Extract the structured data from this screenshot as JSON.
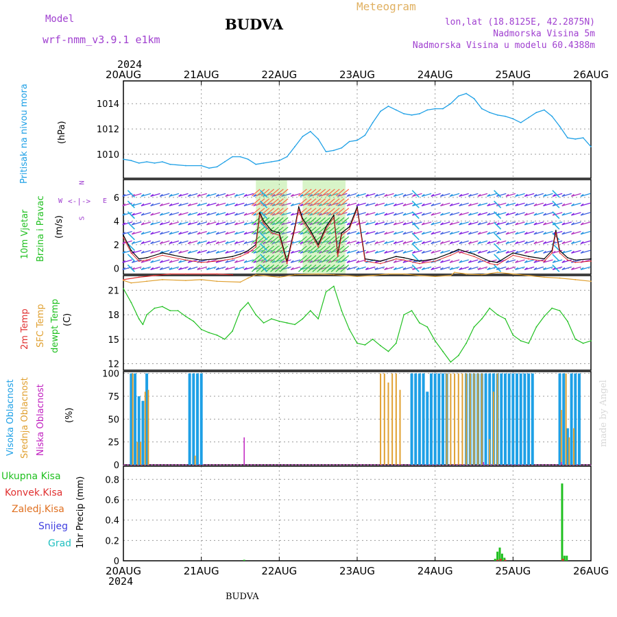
{
  "header": {
    "model_label": "Model",
    "model_name": "wrf-nmm_v3.9.1 e1km",
    "city": "BUDVA",
    "meteogram": "Meteogram",
    "lonlat": "lon,lat (18.8125E, 42.2875N)",
    "altitude": "Nadmorska Visina 5m",
    "model_altitude": "Nadmorska Visina u modelu 60.4388m",
    "year_top": "2024",
    "year_bottom": "2024",
    "footer_city": "BUDVA",
    "credit": "made by Angel"
  },
  "colors": {
    "pressure": "#1ea0e6",
    "wind_title": "#20c020",
    "temp2m": "#e03030",
    "sfc": "#e0a030",
    "dewpoint": "#20c020",
    "high_cloud": "#1ea0e6",
    "mid_cloud": "#e0a030",
    "low_cloud": "#c020c0",
    "precip_total": "#20c020",
    "precip_conv": "#e03030",
    "precip_strat": "#e07020",
    "snow": "#4040e0",
    "hail": "#20c0c0",
    "purple": "#a040d0"
  },
  "chart_data": [
    {
      "type": "line",
      "name": "pressure",
      "title_lines": [
        "Pritisak na nivou mora",
        "(hPa)"
      ],
      "x_unit": "days since 20AUG 00z",
      "xlim": [
        0,
        6
      ],
      "ylim": [
        1008.1,
        1015.8
      ],
      "y_ticks": [
        1010,
        1012,
        1014
      ],
      "x": [
        0,
        0.1,
        0.2,
        0.3,
        0.4,
        0.5,
        0.6,
        0.8,
        1.0,
        1.1,
        1.2,
        1.3,
        1.4,
        1.5,
        1.6,
        1.7,
        1.8,
        1.9,
        2.0,
        2.1,
        2.2,
        2.3,
        2.4,
        2.5,
        2.6,
        2.7,
        2.8,
        2.9,
        3.0,
        3.1,
        3.2,
        3.3,
        3.4,
        3.5,
        3.6,
        3.7,
        3.8,
        3.9,
        4.0,
        4.1,
        4.2,
        4.3,
        4.4,
        4.5,
        4.6,
        4.7,
        4.8,
        4.9,
        5.0,
        5.1,
        5.2,
        5.3,
        5.4,
        5.5,
        5.6,
        5.7,
        5.8,
        5.9,
        6.0
      ],
      "values": [
        1009.6,
        1009.5,
        1009.3,
        1009.4,
        1009.3,
        1009.4,
        1009.2,
        1009.1,
        1009.1,
        1008.9,
        1009.0,
        1009.4,
        1009.8,
        1009.8,
        1009.6,
        1009.2,
        1009.3,
        1009.4,
        1009.5,
        1009.8,
        1010.6,
        1011.4,
        1011.8,
        1011.2,
        1010.2,
        1010.3,
        1010.5,
        1011.0,
        1011.1,
        1011.5,
        1012.5,
        1013.4,
        1013.8,
        1013.5,
        1013.2,
        1013.1,
        1013.2,
        1013.5,
        1013.6,
        1013.6,
        1014.0,
        1014.6,
        1014.8,
        1014.4,
        1013.6,
        1013.3,
        1013.1,
        1013.0,
        1012.8,
        1012.5,
        1012.9,
        1013.3,
        1013.5,
        1013.0,
        1012.2,
        1011.3,
        1011.2,
        1011.3,
        1010.6
      ]
    },
    {
      "type": "line",
      "name": "wind",
      "title_lines": [
        "10m Vjetar",
        "Brzina i Pravac",
        "(m/s)"
      ],
      "compass": [
        "N",
        "S",
        "E",
        "W"
      ],
      "xlim": [
        0,
        6
      ],
      "ylim": [
        -0.5,
        7.5
      ],
      "y_ticks": [
        0,
        2,
        4,
        6
      ],
      "x": [
        0,
        0.1,
        0.2,
        0.3,
        0.5,
        0.8,
        1.0,
        1.2,
        1.4,
        1.5,
        1.6,
        1.7,
        1.75,
        1.8,
        1.9,
        2.0,
        2.1,
        2.2,
        2.25,
        2.3,
        2.4,
        2.5,
        2.6,
        2.7,
        2.75,
        2.8,
        2.9,
        3.0,
        3.1,
        3.3,
        3.5,
        3.6,
        3.8,
        4.0,
        4.2,
        4.3,
        4.5,
        4.7,
        4.8,
        5.0,
        5.2,
        5.4,
        5.5,
        5.55,
        5.6,
        5.7,
        5.8,
        6.0
      ],
      "values": [
        2.8,
        1.5,
        0.8,
        0.9,
        1.3,
        0.9,
        0.7,
        0.8,
        1.0,
        1.2,
        1.5,
        2.0,
        4.7,
        4.0,
        3.2,
        3.0,
        0.6,
        3.5,
        5.2,
        4.2,
        3.2,
        2.0,
        3.5,
        4.5,
        1.2,
        3.0,
        3.5,
        5.2,
        0.8,
        0.6,
        1.0,
        0.9,
        0.6,
        0.8,
        1.3,
        1.6,
        1.2,
        0.6,
        0.5,
        1.3,
        1.0,
        0.8,
        1.5,
        3.2,
        1.5,
        0.9,
        0.7,
        0.8
      ]
    },
    {
      "type": "line",
      "name": "temperature",
      "title_lines": [
        "2m Temp",
        "SFC Temp",
        "dewpt Temp",
        "(C)"
      ],
      "xlim": [
        0,
        6
      ],
      "ylim": [
        11.2,
        22.8
      ],
      "y_ticks": [
        12,
        15,
        18,
        21
      ],
      "series": [
        {
          "name": "2m Temp",
          "x": [
            0,
            0.2,
            0.4,
            0.6,
            0.8,
            1.2,
            1.4
          ],
          "values": [
            22.3,
            22.6,
            22.8,
            23.0,
            23.0,
            23.0,
            22.9
          ]
        },
        {
          "name": "SFC Temp",
          "x": [
            0,
            0.1,
            0.3,
            0.5,
            0.8,
            1.0,
            1.2,
            1.5,
            1.6,
            1.7,
            1.8,
            2.0,
            2.2,
            2.5,
            2.7,
            3.0,
            3.2,
            3.4,
            3.6,
            3.8,
            4.0,
            4.2,
            4.25,
            4.4,
            4.6,
            4.8,
            5.0,
            5.2,
            5.4,
            5.6,
            5.8,
            6.0
          ],
          "values": [
            22.2,
            21.9,
            22.1,
            22.3,
            22.2,
            22.3,
            22.1,
            22.0,
            22.5,
            22.9,
            22.8,
            22.6,
            22.9,
            23.0,
            22.9,
            22.7,
            22.8,
            23.0,
            23.0,
            22.8,
            22.7,
            22.8,
            23.6,
            23.0,
            22.9,
            23.2,
            23.0,
            22.8,
            22.6,
            22.5,
            22.3,
            22.1
          ]
        },
        {
          "name": "dewpt Temp",
          "x": [
            0,
            0.1,
            0.2,
            0.25,
            0.3,
            0.4,
            0.5,
            0.6,
            0.7,
            0.8,
            0.85,
            0.9,
            1.0,
            1.1,
            1.2,
            1.3,
            1.4,
            1.5,
            1.6,
            1.7,
            1.8,
            1.9,
            2.0,
            2.1,
            2.2,
            2.3,
            2.4,
            2.5,
            2.6,
            2.7,
            2.8,
            2.9,
            3.0,
            3.1,
            3.2,
            3.3,
            3.4,
            3.5,
            3.6,
            3.7,
            3.8,
            3.9,
            4.0,
            4.1,
            4.2,
            4.3,
            4.4,
            4.5,
            4.6,
            4.7,
            4.8,
            4.9,
            5.0,
            5.1,
            5.2,
            5.3,
            5.4,
            5.5,
            5.6,
            5.7,
            5.8,
            5.9,
            6.0
          ],
          "values": [
            21.2,
            19.5,
            17.5,
            16.8,
            18.0,
            18.8,
            19.0,
            18.5,
            18.5,
            17.8,
            17.5,
            17.2,
            16.2,
            15.8,
            15.5,
            15.0,
            16.0,
            18.5,
            19.5,
            18.0,
            17.0,
            17.5,
            17.2,
            17.0,
            16.8,
            17.5,
            18.5,
            17.5,
            20.8,
            21.5,
            18.5,
            16.2,
            14.5,
            14.3,
            15.0,
            14.2,
            13.5,
            14.5,
            18.0,
            18.5,
            17.0,
            16.5,
            14.8,
            13.5,
            12.2,
            13.0,
            14.5,
            16.5,
            17.5,
            18.8,
            18.0,
            17.5,
            15.5,
            14.8,
            14.5,
            16.5,
            17.8,
            18.8,
            18.5,
            17.2,
            15.0,
            14.5,
            14.8
          ]
        }
      ]
    },
    {
      "type": "bar",
      "name": "cloud",
      "title_lines": [
        "Visoka Oblacnost",
        "Srednja Oblacnost",
        "Niska Oblacnost",
        "(%)"
      ],
      "xlim": [
        0,
        6
      ],
      "ylim": [
        0,
        102
      ],
      "y_ticks": [
        0,
        25,
        50,
        75,
        100
      ],
      "series": [
        {
          "name": "Visoka Oblacnost",
          "x": [
            0.1,
            0.15,
            0.2,
            0.25,
            0.3,
            0.85,
            0.9,
            0.95,
            1.0,
            3.7,
            3.75,
            3.8,
            3.85,
            3.9,
            3.95,
            4.0,
            4.05,
            4.1,
            4.15,
            4.4,
            4.45,
            4.5,
            4.55,
            4.6,
            4.65,
            4.7,
            4.75,
            4.8,
            4.85,
            4.9,
            4.95,
            5.0,
            5.05,
            5.1,
            5.15,
            5.2,
            5.25,
            5.6,
            5.65,
            5.7,
            5.75,
            5.8,
            5.85
          ],
          "values": [
            100,
            100,
            75,
            70,
            100,
            100,
            100,
            100,
            100,
            100,
            100,
            100,
            100,
            80,
            100,
            100,
            100,
            100,
            100,
            100,
            100,
            100,
            100,
            100,
            100,
            100,
            100,
            100,
            100,
            100,
            100,
            100,
            100,
            100,
            100,
            100,
            100,
            100,
            100,
            40,
            100,
            100,
            100
          ]
        },
        {
          "name": "Srednja Oblacnost",
          "x": [
            0.12,
            0.18,
            0.22,
            0.28,
            0.32,
            0.92,
            3.3,
            3.35,
            3.4,
            3.45,
            3.5,
            3.55,
            4.15,
            4.2,
            4.25,
            4.3,
            4.35,
            4.4,
            4.45,
            4.5,
            4.55,
            4.6,
            4.7,
            4.75,
            4.8,
            5.62,
            5.68,
            5.72,
            5.78
          ],
          "values": [
            100,
            25,
            25,
            80,
            82,
            10,
            100,
            100,
            90,
            100,
            100,
            82,
            100,
            100,
            100,
            100,
            100,
            100,
            100,
            100,
            100,
            100,
            28,
            80,
            100,
            60,
            100,
            30,
            40
          ]
        },
        {
          "name": "Niska Oblacnost",
          "x": [
            1.55,
            4.62,
            5.62
          ],
          "values": [
            30,
            3,
            3
          ]
        }
      ]
    },
    {
      "type": "bar",
      "name": "precip",
      "title_lines": [
        "Ukupna Kisa",
        "Konvek.Kisa",
        "Zaledj.Kisa",
        "Snijeg",
        "Grad",
        "1hr Precip (mm)"
      ],
      "xlim": [
        0,
        6
      ],
      "ylim": [
        0,
        0.93
      ],
      "y_ticks": [
        0,
        0.2,
        0.4,
        0.6,
        0.8
      ],
      "series": [
        {
          "name": "Ukupna Kisa",
          "x": [
            1.55,
            4.77,
            4.8,
            4.83,
            4.86,
            4.89,
            5.63,
            5.66,
            5.69
          ],
          "values": [
            0.01,
            0.02,
            0.09,
            0.13,
            0.07,
            0.03,
            0.76,
            0.05,
            0.05
          ]
        },
        {
          "name": "Konvek.Kisa",
          "x": [
            4.8,
            4.84,
            4.9,
            5.64
          ],
          "values": [
            0.01,
            0.02,
            0.01,
            0.02
          ]
        }
      ]
    }
  ],
  "x_axis": {
    "tick_labels": [
      "20AUG",
      "21AUG",
      "22AUG",
      "23AUG",
      "24AUG",
      "25AUG",
      "26AUG"
    ]
  }
}
